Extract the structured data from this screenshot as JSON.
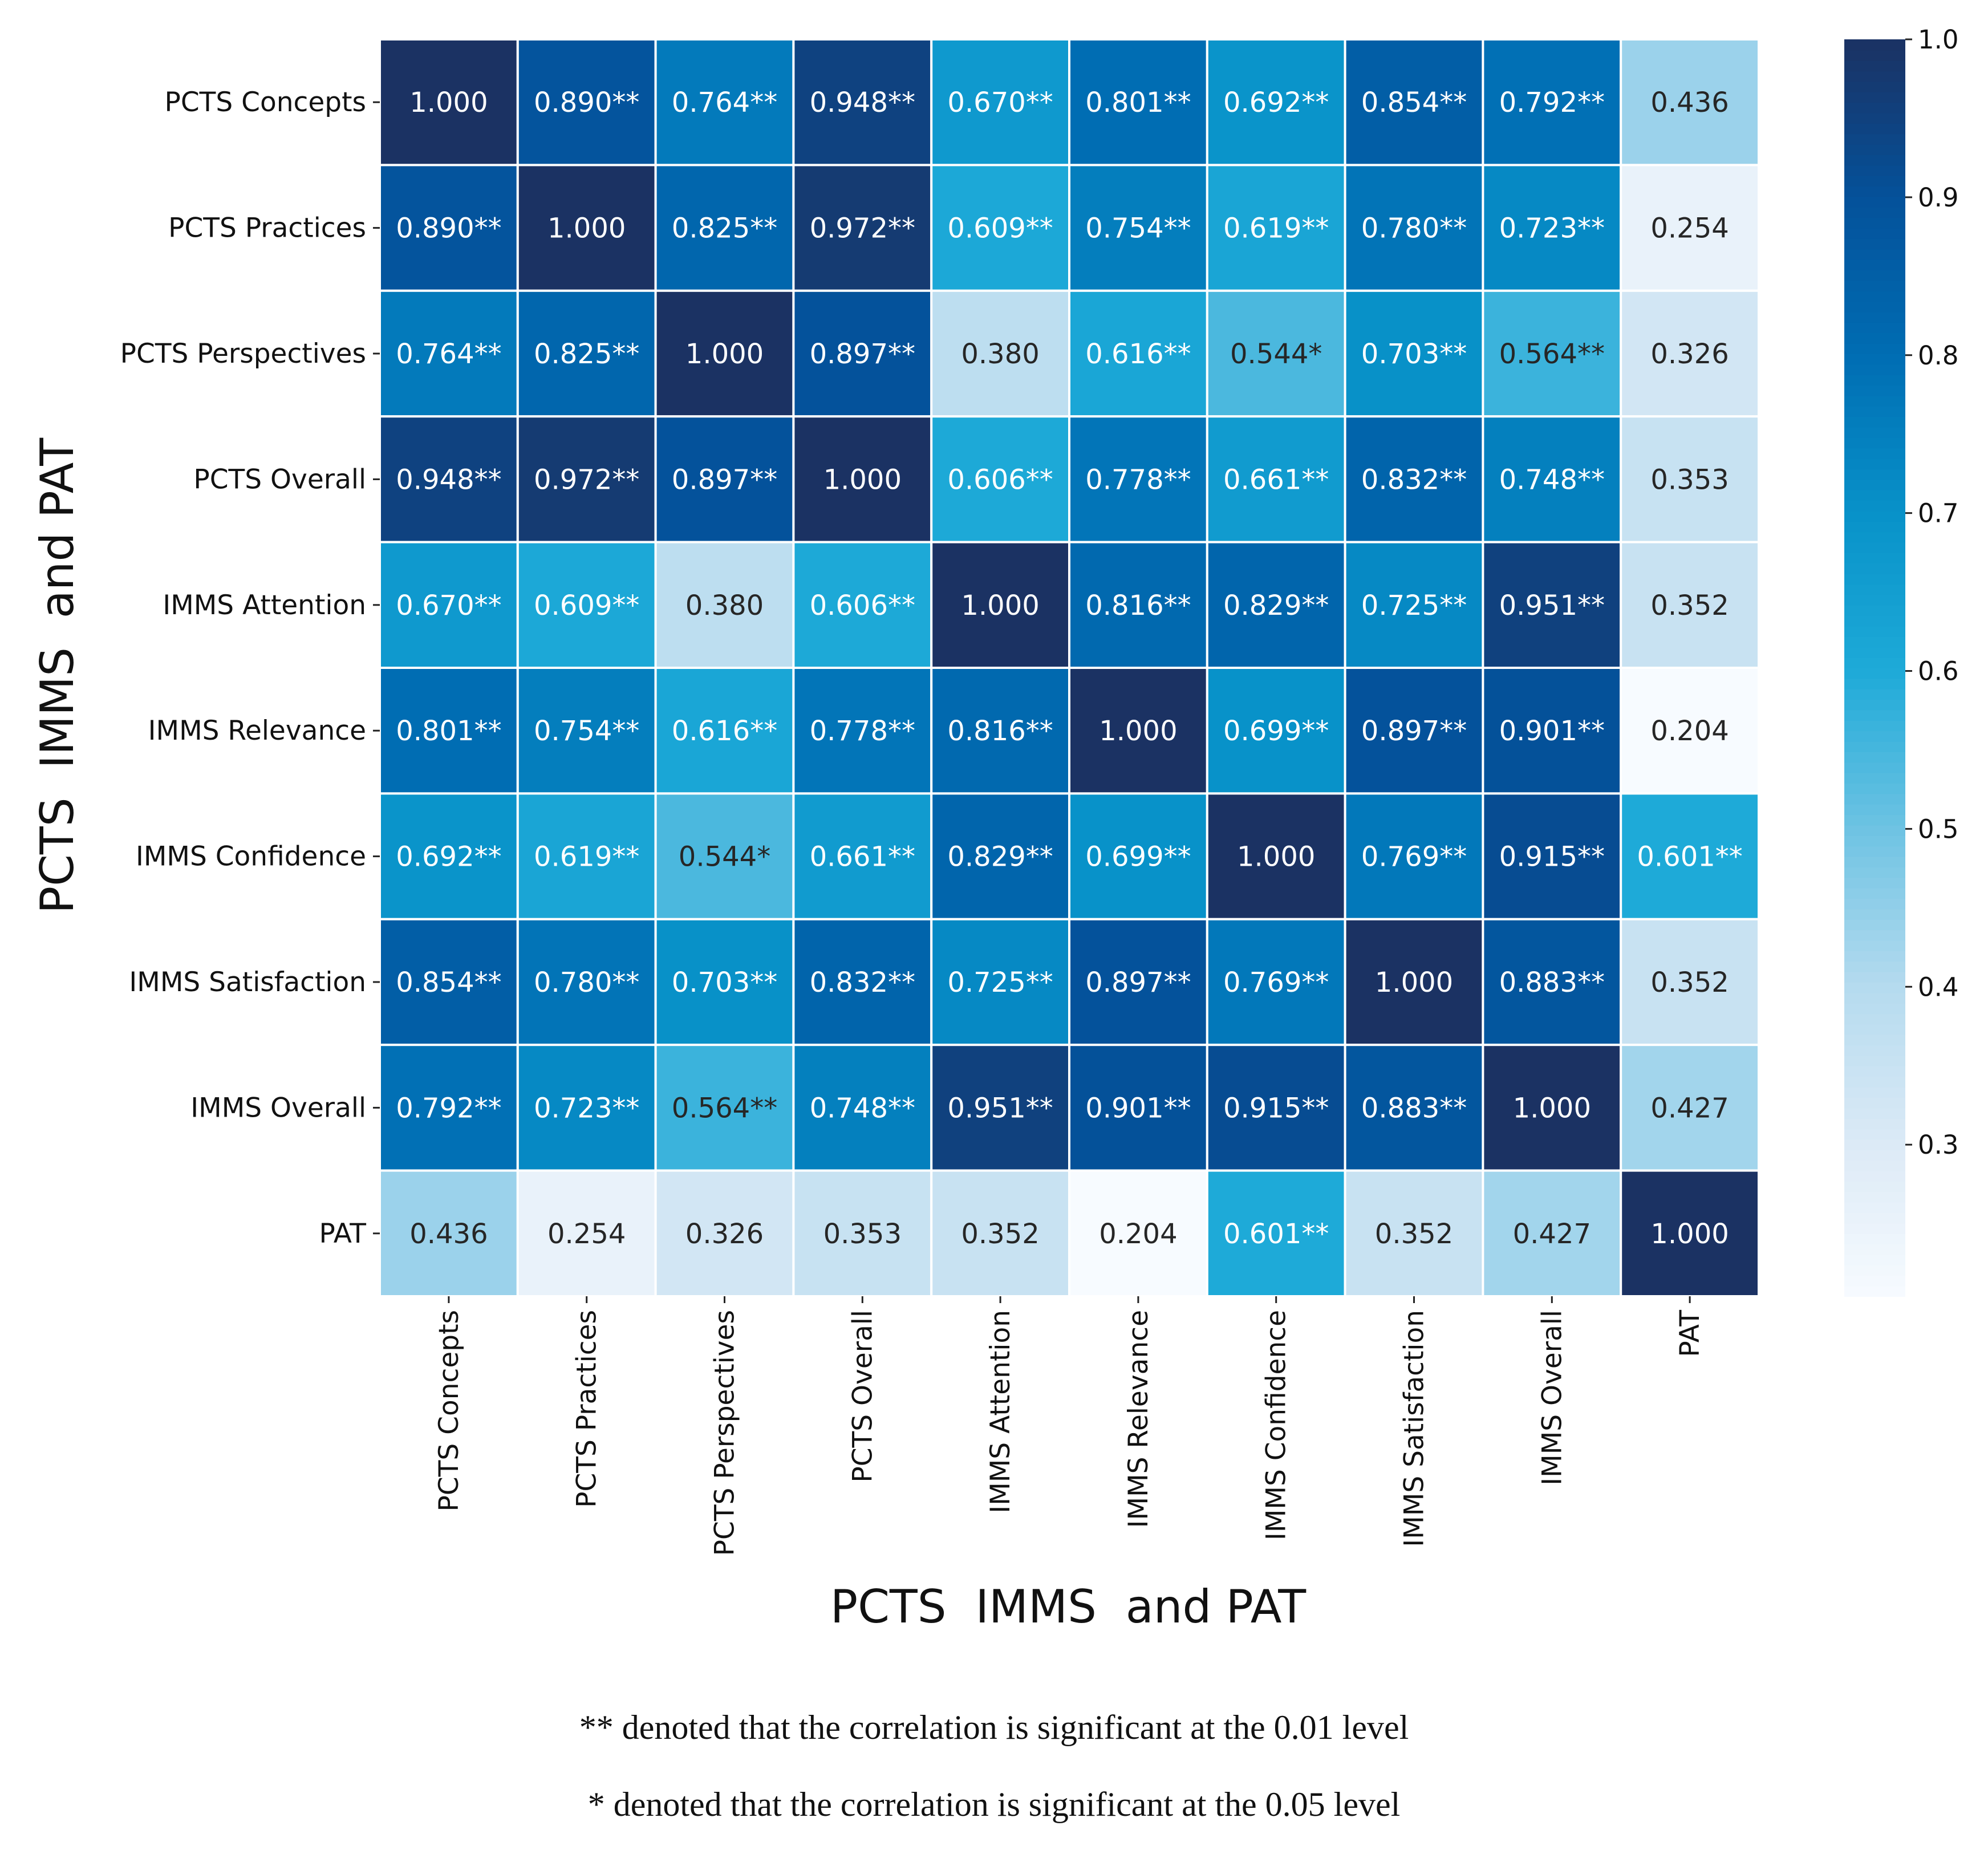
{
  "chart_data": {
    "type": "heatmap",
    "xlabel": "PCTS  IMMS  and PAT",
    "ylabel": "PCTS  IMMS  and PAT",
    "row_labels": [
      "PCTS Concepts",
      "PCTS Practices",
      "PCTS Perspectives",
      "PCTS Overall",
      "IMMS Attention",
      "IMMS Relevance",
      "IMMS Confidence",
      "IMMS Satisfaction",
      "IMMS Overall",
      "PAT"
    ],
    "col_labels": [
      "PCTS Concepts",
      "PCTS Practices",
      "PCTS Perspectives",
      "PCTS Overall",
      "IMMS Attention",
      "IMMS Relevance",
      "IMMS Confidence",
      "IMMS Satisfaction",
      "IMMS Overall",
      "PAT"
    ],
    "values": [
      [
        1.0,
        0.89,
        0.764,
        0.948,
        0.67,
        0.801,
        0.692,
        0.854,
        0.792,
        0.436
      ],
      [
        0.89,
        1.0,
        0.825,
        0.972,
        0.609,
        0.754,
        0.619,
        0.78,
        0.723,
        0.254
      ],
      [
        0.764,
        0.825,
        1.0,
        0.897,
        0.38,
        0.616,
        0.544,
        0.703,
        0.564,
        0.326
      ],
      [
        0.948,
        0.972,
        0.897,
        1.0,
        0.606,
        0.778,
        0.661,
        0.832,
        0.748,
        0.353
      ],
      [
        0.67,
        0.609,
        0.38,
        0.606,
        1.0,
        0.816,
        0.829,
        0.725,
        0.951,
        0.352
      ],
      [
        0.801,
        0.754,
        0.616,
        0.778,
        0.816,
        1.0,
        0.699,
        0.897,
        0.901,
        0.204
      ],
      [
        0.692,
        0.619,
        0.544,
        0.661,
        0.829,
        0.699,
        1.0,
        0.769,
        0.915,
        0.601
      ],
      [
        0.854,
        0.78,
        0.703,
        0.832,
        0.725,
        0.897,
        0.769,
        1.0,
        0.883,
        0.352
      ],
      [
        0.792,
        0.723,
        0.564,
        0.748,
        0.951,
        0.901,
        0.915,
        0.883,
        1.0,
        0.427
      ],
      [
        0.436,
        0.254,
        0.326,
        0.353,
        0.352,
        0.204,
        0.601,
        0.352,
        0.427,
        1.0
      ]
    ],
    "annotations": [
      [
        "1.000",
        "0.890**",
        "0.764**",
        "0.948**",
        "0.670**",
        "0.801**",
        "0.692**",
        "0.854**",
        "0.792**",
        "0.436"
      ],
      [
        "0.890**",
        "1.000",
        "0.825**",
        "0.972**",
        "0.609**",
        "0.754**",
        "0.619**",
        "0.780**",
        "0.723**",
        "0.254"
      ],
      [
        "0.764**",
        "0.825**",
        "1.000",
        "0.897**",
        "0.380",
        "0.616**",
        "0.544*",
        "0.703**",
        "0.564**",
        "0.326"
      ],
      [
        "0.948**",
        "0.972**",
        "0.897**",
        "1.000",
        "0.606**",
        "0.778**",
        "0.661**",
        "0.832**",
        "0.748**",
        "0.353"
      ],
      [
        "0.670**",
        "0.609**",
        "0.380",
        "0.606**",
        "1.000",
        "0.816**",
        "0.829**",
        "0.725**",
        "0.951**",
        "0.352"
      ],
      [
        "0.801**",
        "0.754**",
        "0.616**",
        "0.778**",
        "0.816**",
        "1.000",
        "0.699**",
        "0.897**",
        "0.901**",
        "0.204"
      ],
      [
        "0.692**",
        "0.619**",
        "0.544*",
        "0.661**",
        "0.829**",
        "0.699**",
        "1.000",
        "0.769**",
        "0.915**",
        "0.601**"
      ],
      [
        "0.854**",
        "0.780**",
        "0.703**",
        "0.832**",
        "0.725**",
        "0.897**",
        "0.769**",
        "1.000",
        "0.883**",
        "0.352"
      ],
      [
        "0.792**",
        "0.723**",
        "0.564**",
        "0.748**",
        "0.951**",
        "0.901**",
        "0.915**",
        "0.883**",
        "1.000",
        "0.427"
      ],
      [
        "0.436",
        "0.254",
        "0.326",
        "0.353",
        "0.352",
        "0.204",
        "0.601**",
        "0.352",
        "0.427",
        "1.000"
      ]
    ],
    "colormap": "Blues",
    "colorbar": {
      "range": [
        0.204,
        1.0
      ],
      "ticks": [
        "0.3",
        "0.4",
        "0.5",
        "0.6",
        "0.7",
        "0.8",
        "0.9",
        "1.0"
      ]
    },
    "colors": {
      "low": "#f7fbff",
      "high": "#1b3263"
    }
  },
  "footnotes": [
    "** denoted that the correlation is significant at the 0.01 level",
    "* denoted that the correlation is significant at the 0.05 level"
  ]
}
